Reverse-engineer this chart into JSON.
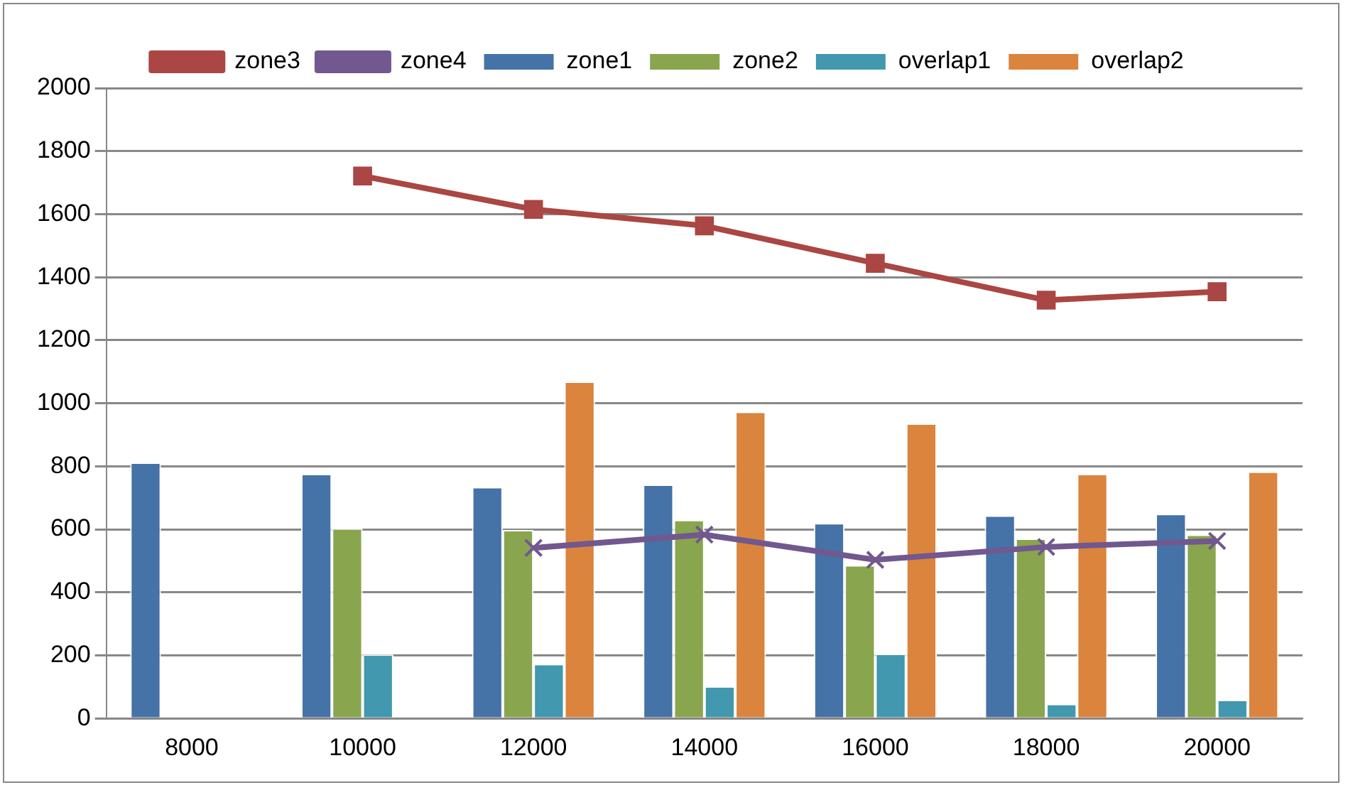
{
  "chart_data": {
    "type": "bar",
    "categories": [
      "8000",
      "10000",
      "12000",
      "14000",
      "16000",
      "18000",
      "20000"
    ],
    "ylim": [
      0,
      2000
    ],
    "yticks": [
      0,
      200,
      400,
      600,
      800,
      1000,
      1200,
      1400,
      1600,
      1800,
      2000
    ],
    "grid": "y",
    "legend": "top",
    "series": [
      {
        "name": "zone1",
        "color": "#4572a7",
        "values": [
          812,
          776,
          734,
          742,
          620,
          644,
          649
        ]
      },
      {
        "name": "zone2",
        "color": "#89a54e",
        "values": [
          null,
          603,
          598,
          630,
          486,
          571,
          583
        ]
      },
      {
        "name": "overlap1",
        "color": "#4198af",
        "values": [
          null,
          203,
          173,
          102,
          205,
          46,
          59
        ]
      },
      {
        "name": "overlap2",
        "color": "#db843d",
        "values": [
          null,
          null,
          1069,
          973,
          936,
          776,
          783
        ]
      },
      {
        "name": "zone3",
        "type": "line",
        "marker": "square",
        "color": "#aa4643",
        "values": [
          null,
          1721,
          1615,
          1563,
          1444,
          1327,
          1354
        ]
      },
      {
        "name": "zone4",
        "type": "line",
        "marker": "cross",
        "color": "#71588f",
        "values": [
          null,
          null,
          541,
          583,
          503,
          544,
          563
        ]
      }
    ]
  }
}
